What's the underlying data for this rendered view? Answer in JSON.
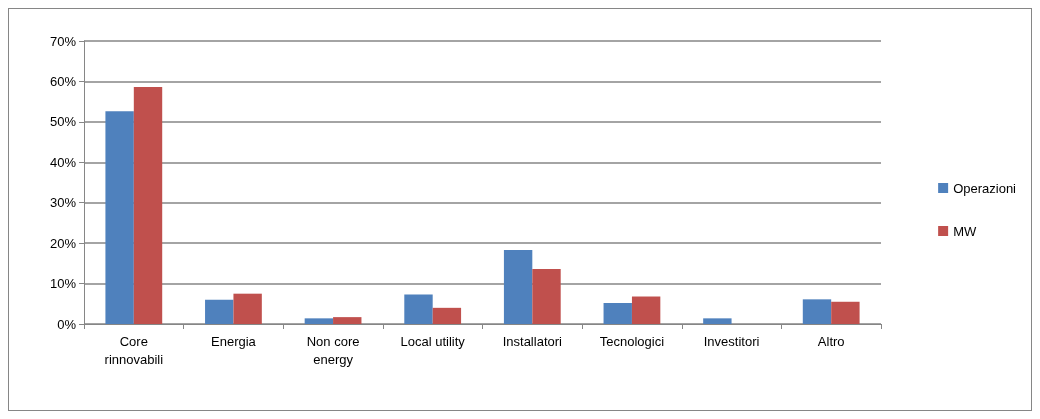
{
  "chart_data": {
    "type": "bar",
    "categories": [
      "Core\nrinnovabili",
      "Energia",
      "Non core\nenergy",
      "Local utility",
      "Installatori",
      "Tecnologici",
      "Investitori",
      "Altro"
    ],
    "series": [
      {
        "name": "Operazioni",
        "color": "#4f81bd",
        "values": [
          52.6,
          6.0,
          1.4,
          7.3,
          18.3,
          5.2,
          1.4,
          6.1
        ]
      },
      {
        "name": "MW",
        "color": "#c0504d",
        "values": [
          58.6,
          7.5,
          1.7,
          4.0,
          13.6,
          6.8,
          0,
          5.5
        ]
      }
    ],
    "ylim": [
      0,
      70
    ],
    "yticks": [
      {
        "value": 0,
        "label": "0%"
      },
      {
        "value": 10,
        "label": "10%"
      },
      {
        "value": 20,
        "label": "20%"
      },
      {
        "value": 30,
        "label": "30%"
      },
      {
        "value": 40,
        "label": "40%"
      },
      {
        "value": 50,
        "label": "50%"
      },
      {
        "value": 60,
        "label": "60%"
      },
      {
        "value": 70,
        "label": "70%"
      }
    ],
    "grid": "y",
    "legend": "right"
  }
}
